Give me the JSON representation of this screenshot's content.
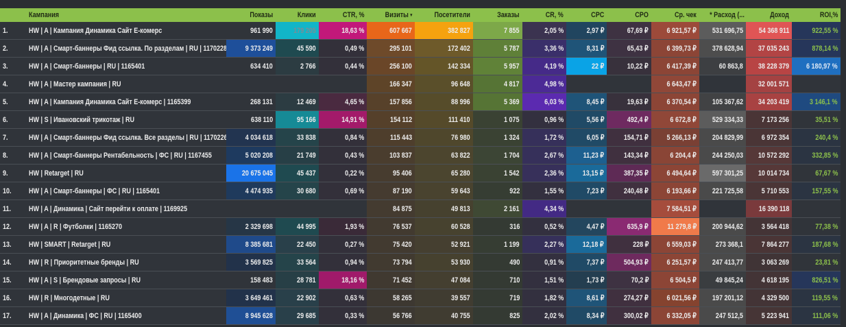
{
  "table": {
    "header": [
      "Кампания",
      "Показы",
      "Клики",
      "CTR, %",
      "Визиты",
      "Посетители",
      "Заказы",
      "CR, %",
      "CPC",
      "CPO",
      "Ср. чек",
      "* Расход (...",
      "Доход",
      "ROI,%"
    ],
    "rows": [
      [
        "1.",
        "HW | A | Кампания Динамика Сайт E-комерс",
        "961 990",
        "179 205",
        "18,63 %",
        "607 667",
        "382 827",
        "7 855",
        "2,05 %",
        "2,97 ₽",
        "67,69 ₽",
        "6 921,57 ₽",
        "531 696,75",
        "54 368 911",
        "922,55 %"
      ],
      [
        "2.",
        "HW | A | Смарт-баннеры Фид ссылка. По разделам | RU | 1170228",
        "9 373 249",
        "45 590",
        "0,49 %",
        "295 101",
        "172 402",
        "5 787",
        "3,36 %",
        "8,31 ₽",
        "65,43 ₽",
        "6 399,73 ₽",
        "378 628,94",
        "37 035 243",
        "878,14 %"
      ],
      [
        "3.",
        "HW | A | Смарт-баннеры | RU | 1165401",
        "634 410",
        "2 766",
        "0,44 %",
        "256 100",
        "142 334",
        "5 957",
        "4,19 %",
        "22 ₽",
        "10,22 ₽",
        "6 417,39 ₽",
        "60 863,8",
        "38 228 379",
        "6 180,97 %"
      ],
      [
        "4.",
        "HW | A | Мастер кампания | RU",
        null,
        null,
        null,
        "166 347",
        "96 648",
        "4 817",
        "4,98 %",
        null,
        null,
        "6 643,47 ₽",
        null,
        "32 001 571",
        null
      ],
      [
        "5.",
        "HW | A | Кампания Динамика Сайт E-комерс | 1165399",
        "268 131",
        "12 469",
        "4,65 %",
        "157 856",
        "88 996",
        "5 369",
        "6,03 %",
        "8,45 ₽",
        "19,63 ₽",
        "6 370,54 ₽",
        "105 367,62",
        "34 203 419",
        "3 146,1 %"
      ],
      [
        "6.",
        "HW | S | Ивановский трикотаж | RU",
        "638 110",
        "95 166",
        "14,91 %",
        "154 112",
        "111 410",
        "1 075",
        "0,96 %",
        "5,56 ₽",
        "492,4 ₽",
        "6 672,8 ₽",
        "529 334,33",
        "7 173 256",
        "35,51 %"
      ],
      [
        "7.",
        "HW | A | Смарт-баннеры Фид ссылка. Все разделы | RU | 1170226",
        "4 034 618",
        "33 838",
        "0,84 %",
        "115 443",
        "76 980",
        "1 324",
        "1,72 %",
        "6,05 ₽",
        "154,71 ₽",
        "5 266,13 ₽",
        "204 829,99",
        "6 972 354",
        "240,4 %"
      ],
      [
        "8.",
        "HW | A | Смарт-баннеры Рентабельность | ФС | RU | 1167455",
        "5 020 208",
        "21 749",
        "0,43 %",
        "103 837",
        "63 822",
        "1 704",
        "2,67 %",
        "11,23 ₽",
        "143,34 ₽",
        "6 204,4 ₽",
        "244 250,03",
        "10 572 292",
        "332,85 %"
      ],
      [
        "9.",
        "HW | Retarget | RU",
        "20 675 045",
        "45 437",
        "0,22 %",
        "95 406",
        "65 280",
        "1 542",
        "2,36 %",
        "13,15 ₽",
        "387,35 ₽",
        "6 494,64 ₽",
        "597 301,25",
        "10 014 734",
        "67,67 %"
      ],
      [
        "10.",
        "HW | A | Смарт-баннеры | ФС | RU | 1165401",
        "4 474 935",
        "30 680",
        "0,69 %",
        "87 190",
        "59 643",
        "922",
        "1,55 %",
        "7,23 ₽",
        "240,48 ₽",
        "6 193,66 ₽",
        "221 725,58",
        "5 710 553",
        "157,55 %"
      ],
      [
        "11.",
        "HW | A | Динамика | Сайт перейти к оплате | 1169925",
        null,
        null,
        null,
        "84 875",
        "49 813",
        "2 161",
        "4,34 %",
        null,
        null,
        "7 584,51 ₽",
        null,
        "16 390 118",
        null
      ],
      [
        "12.",
        "HW | A | R | Футболки | 1165270",
        "2 329 698",
        "44 995",
        "1,93 %",
        "76 537",
        "60 528",
        "316",
        "0,52 %",
        "4,47 ₽",
        "635,9 ₽",
        "11 279,8 ₽",
        "200 944,62",
        "3 564 418",
        "77,38 %"
      ],
      [
        "13.",
        "HW | SMART | Retarget | RU",
        "8 385 681",
        "22 450",
        "0,27 %",
        "75 420",
        "52 921",
        "1 199",
        "2,27 %",
        "12,18 ₽",
        "228 ₽",
        "6 559,03 ₽",
        "273 368,1",
        "7 864 277",
        "187,68 %"
      ],
      [
        "14.",
        "HW | R | Приоритетные бренды | RU",
        "3 569 825",
        "33 564",
        "0,94 %",
        "73 794",
        "53 930",
        "490",
        "0,91 %",
        "7,37 ₽",
        "504,93 ₽",
        "6 251,57 ₽",
        "247 413,77",
        "3 063 269",
        "23,81 %"
      ],
      [
        "15.",
        "HW | A | S | Брендовые запросы | RU",
        "158 483",
        "28 781",
        "18,16 %",
        "71 452",
        "47 084",
        "710",
        "1,51 %",
        "1,73 ₽",
        "70,2 ₽",
        "6 504,5 ₽",
        "49 845,24",
        "4 618 195",
        "826,51 %"
      ],
      [
        "16.",
        "HW | R | Многодетные | RU",
        "3 649 461",
        "22 902",
        "0,63 %",
        "58 265",
        "39 557",
        "719",
        "1,82 %",
        "8,61 ₽",
        "274,27 ₽",
        "6 021,56 ₽",
        "197 201,12",
        "4 329 500",
        "119,55 %"
      ],
      [
        "17.",
        "HW | A | Динамика | ФС | RU | 1165400",
        "8 945 628",
        "29 685",
        "0,33 %",
        "56 766",
        "40 755",
        "825",
        "2,02 %",
        "8,34 ₽",
        "300,02 ₽",
        "6 332,05 ₽",
        "247 512,5",
        "5 223 941",
        "111,06 %"
      ]
    ]
  }
}
